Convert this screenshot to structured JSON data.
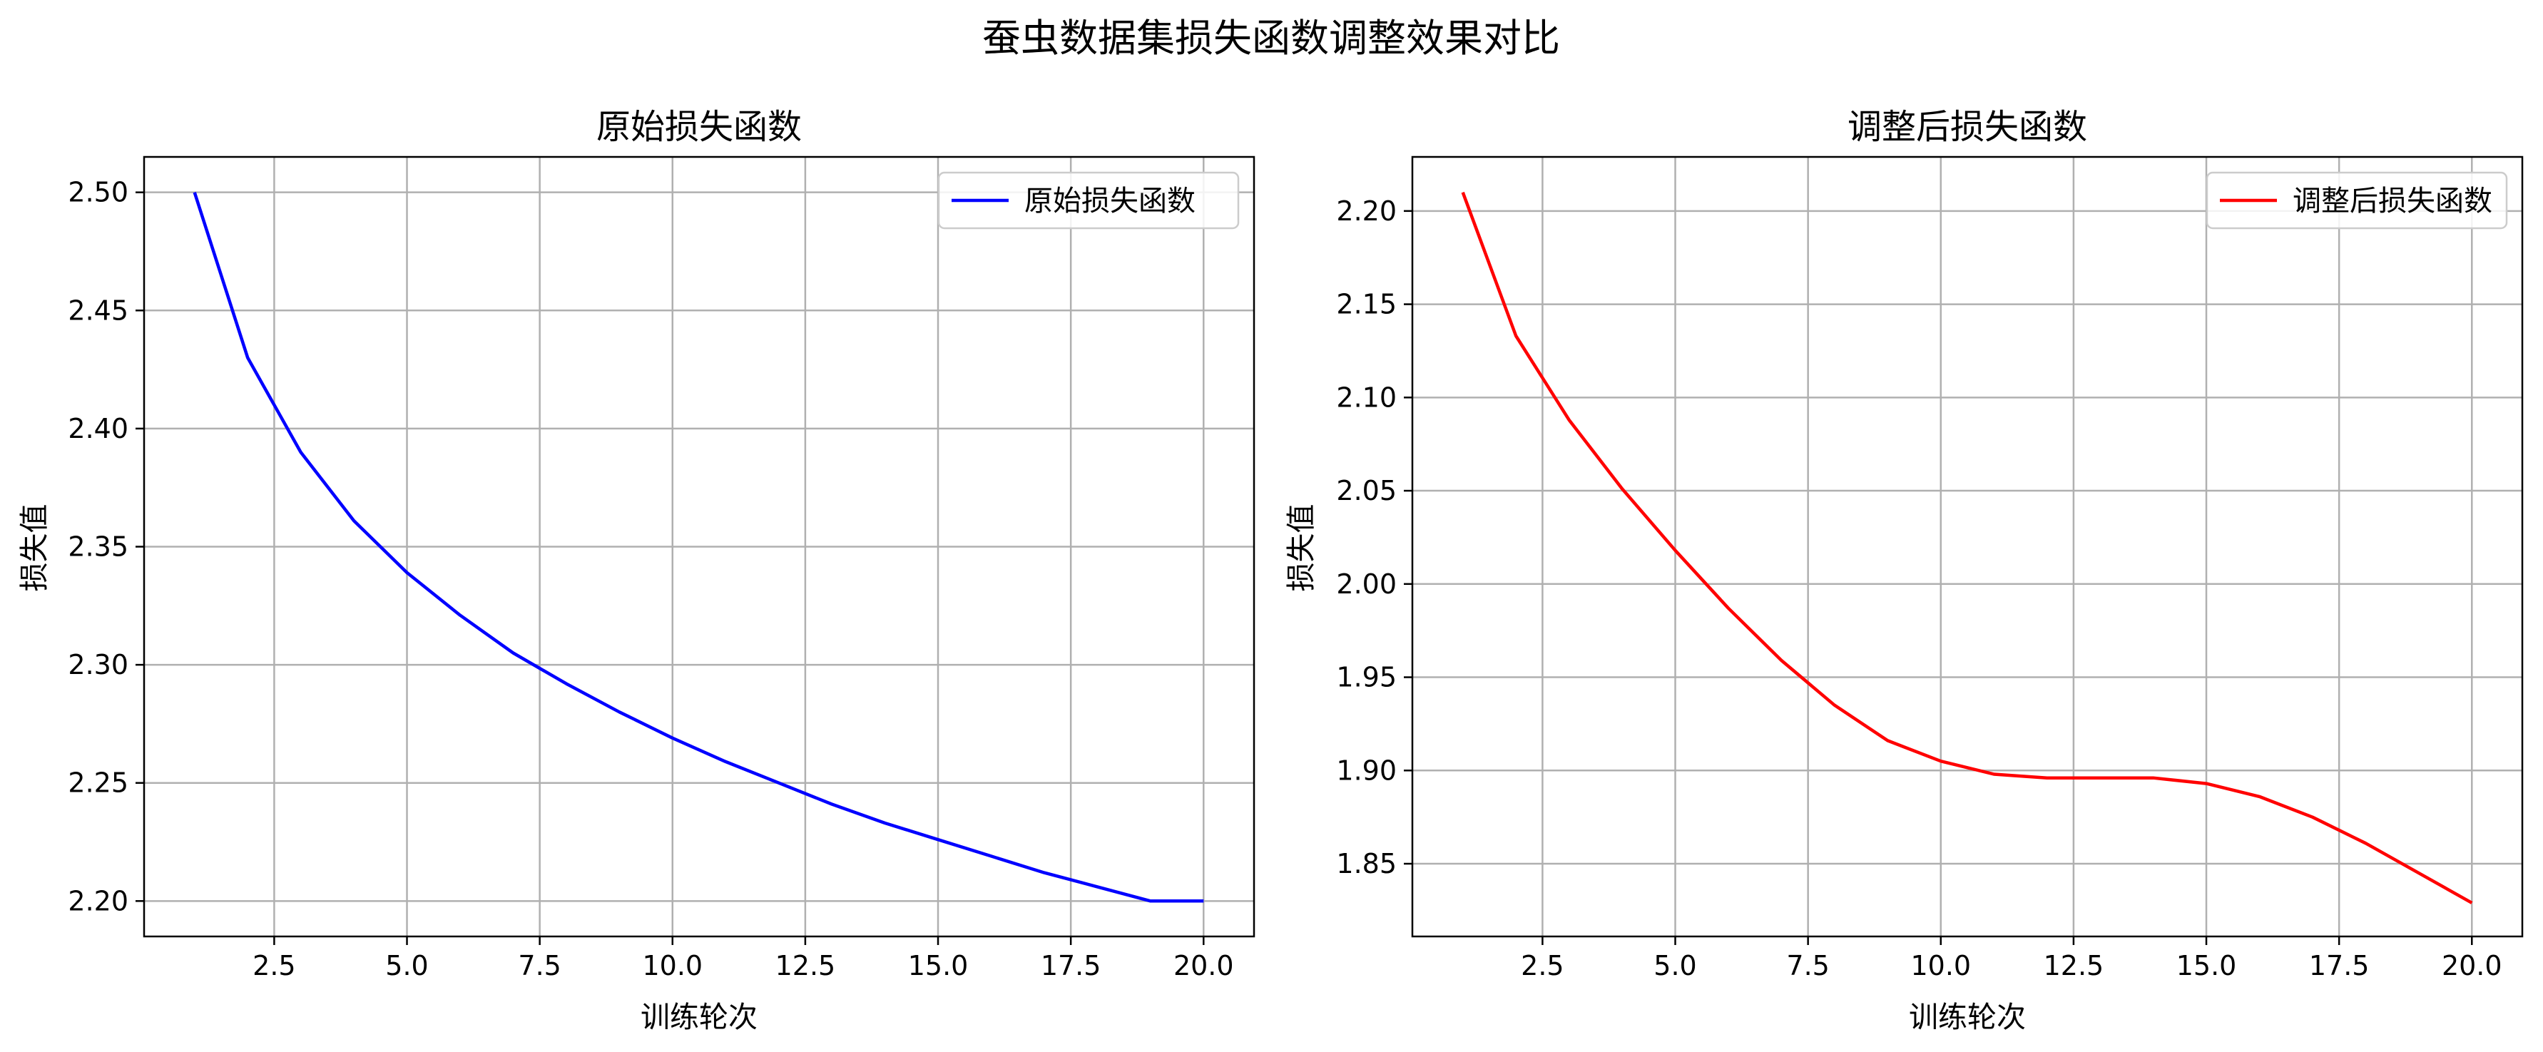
{
  "figure": {
    "suptitle": "蚕虫数据集损失函数调整效果对比"
  },
  "chart_data": [
    {
      "type": "line",
      "title": "原始损失函数",
      "xlabel": "训练轮次",
      "ylabel": "损失值",
      "xlim": [
        0.05,
        20.95
      ],
      "ylim": [
        2.185,
        2.515
      ],
      "xticks": [
        2.5,
        5.0,
        7.5,
        10.0,
        12.5,
        15.0,
        17.5,
        20.0
      ],
      "xtick_labels": [
        "2.5",
        "5.0",
        "7.5",
        "10.0",
        "12.5",
        "15.0",
        "17.5",
        "20.0"
      ],
      "yticks": [
        2.2,
        2.25,
        2.3,
        2.35,
        2.4,
        2.45,
        2.5
      ],
      "ytick_labels": [
        "2.20",
        "2.25",
        "2.30",
        "2.35",
        "2.40",
        "2.45",
        "2.50"
      ],
      "grid": true,
      "legend_position": "upper right",
      "series": [
        {
          "name": "原始损失函数",
          "color": "#0000ff",
          "x": [
            1,
            2,
            3,
            4,
            5,
            6,
            7,
            8,
            9,
            10,
            11,
            12,
            13,
            14,
            15,
            16,
            17,
            18,
            19,
            20
          ],
          "y": [
            2.5,
            2.43,
            2.39,
            2.361,
            2.339,
            2.321,
            2.305,
            2.292,
            2.28,
            2.269,
            2.259,
            2.25,
            2.241,
            2.233,
            2.226,
            2.219,
            2.212,
            2.206,
            2.2,
            2.2
          ]
        }
      ]
    },
    {
      "type": "line",
      "title": "调整后损失函数",
      "xlabel": "训练轮次",
      "ylabel": "损失值",
      "xlim": [
        0.05,
        20.95
      ],
      "ylim": [
        1.811,
        2.229
      ],
      "xticks": [
        2.5,
        5.0,
        7.5,
        10.0,
        12.5,
        15.0,
        17.5,
        20.0
      ],
      "xtick_labels": [
        "2.5",
        "5.0",
        "7.5",
        "10.0",
        "12.5",
        "15.0",
        "17.5",
        "20.0"
      ],
      "yticks": [
        1.85,
        1.9,
        1.95,
        2.0,
        2.05,
        2.1,
        2.15,
        2.2
      ],
      "ytick_labels": [
        "1.85",
        "1.90",
        "1.95",
        "2.00",
        "2.05",
        "2.10",
        "2.15",
        "2.20"
      ],
      "grid": true,
      "legend_position": "upper right",
      "series": [
        {
          "name": "调整后损失函数",
          "color": "#ff0000",
          "x": [
            1,
            2,
            3,
            4,
            5,
            6,
            7,
            8,
            9,
            10,
            11,
            12,
            13,
            14,
            15,
            16,
            17,
            18,
            19,
            20
          ],
          "y": [
            2.21,
            2.133,
            2.088,
            2.051,
            2.018,
            1.987,
            1.959,
            1.935,
            1.916,
            1.905,
            1.898,
            1.896,
            1.896,
            1.896,
            1.893,
            1.886,
            1.875,
            1.861,
            1.845,
            1.829
          ]
        }
      ]
    }
  ]
}
